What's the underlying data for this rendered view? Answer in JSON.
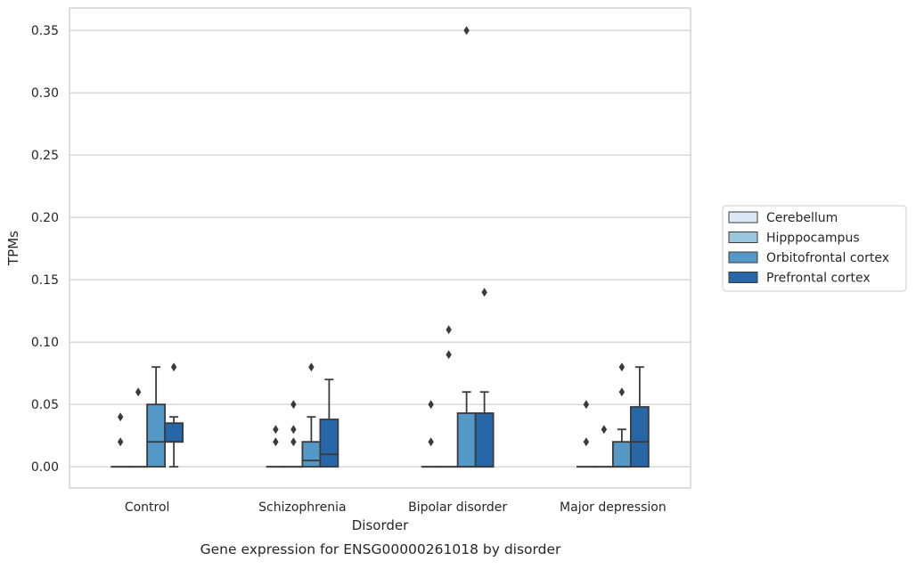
{
  "chart_data": {
    "type": "box",
    "xlabel": "Disorder",
    "ylabel": "TPMs",
    "caption": "Gene expression for ENSG00000261018 by disorder",
    "categories": [
      "Control",
      "Schizophrenia",
      "Bipolar disorder",
      "Major depression"
    ],
    "ylim": [
      -0.017,
      0.368
    ],
    "yticks": [
      0.0,
      0.05,
      0.1,
      0.15,
      0.2,
      0.25,
      0.3,
      0.35
    ],
    "ytick_labels": [
      "0.00",
      "0.05",
      "0.10",
      "0.15",
      "0.20",
      "0.25",
      "0.30",
      "0.35"
    ],
    "grid": true,
    "legend_position": "right",
    "series": [
      {
        "name": "Cerebellum",
        "color": "#dbe8f5",
        "boxes": [
          {
            "q1": 0,
            "median": 0,
            "q3": 0,
            "whisker_low": 0,
            "whisker_high": 0,
            "outliers": [
              0.02,
              0.04
            ]
          },
          {
            "q1": 0,
            "median": 0,
            "q3": 0,
            "whisker_low": 0,
            "whisker_high": 0,
            "outliers": [
              0.02,
              0.03
            ]
          },
          {
            "q1": 0,
            "median": 0,
            "q3": 0,
            "whisker_low": 0,
            "whisker_high": 0,
            "outliers": [
              0.02,
              0.05
            ]
          },
          {
            "q1": 0,
            "median": 0,
            "q3": 0,
            "whisker_low": 0,
            "whisker_high": 0,
            "outliers": [
              0.02,
              0.05
            ]
          }
        ]
      },
      {
        "name": "Hipppocampus",
        "color": "#9ac7e0",
        "boxes": [
          {
            "q1": 0,
            "median": 0,
            "q3": 0,
            "whisker_low": 0,
            "whisker_high": 0,
            "outliers": [
              0.06
            ]
          },
          {
            "q1": 0,
            "median": 0,
            "q3": 0,
            "whisker_low": 0,
            "whisker_high": 0,
            "outliers": [
              0.02,
              0.03,
              0.05
            ]
          },
          {
            "q1": 0,
            "median": 0,
            "q3": 0,
            "whisker_low": 0,
            "whisker_high": 0,
            "outliers": [
              0.09,
              0.11
            ]
          },
          {
            "q1": 0,
            "median": 0,
            "q3": 0,
            "whisker_low": 0,
            "whisker_high": 0,
            "outliers": [
              0.03
            ]
          }
        ]
      },
      {
        "name": "Orbitofrontal cortex",
        "color": "#5498c8",
        "boxes": [
          {
            "q1": 0,
            "median": 0.02,
            "q3": 0.05,
            "whisker_low": 0,
            "whisker_high": 0.08,
            "outliers": []
          },
          {
            "q1": 0,
            "median": 0.005,
            "q3": 0.02,
            "whisker_low": 0,
            "whisker_high": 0.04,
            "outliers": [
              0.08
            ]
          },
          {
            "q1": 0,
            "median": 0,
            "q3": 0.043,
            "whisker_low": 0,
            "whisker_high": 0.06,
            "outliers": [
              0.35
            ]
          },
          {
            "q1": 0,
            "median": 0,
            "q3": 0.02,
            "whisker_low": 0,
            "whisker_high": 0.03,
            "outliers": [
              0.06,
              0.08
            ]
          }
        ]
      },
      {
        "name": "Prefrontal cortex",
        "color": "#2767a8",
        "boxes": [
          {
            "q1": 0.02,
            "median": 0.02,
            "q3": 0.035,
            "whisker_low": 0,
            "whisker_high": 0.04,
            "outliers": [
              0.08
            ]
          },
          {
            "q1": 0,
            "median": 0.01,
            "q3": 0.038,
            "whisker_low": 0,
            "whisker_high": 0.07,
            "outliers": []
          },
          {
            "q1": 0,
            "median": 0,
            "q3": 0.043,
            "whisker_low": 0,
            "whisker_high": 0.06,
            "outliers": [
              0.14
            ]
          },
          {
            "q1": 0,
            "median": 0.02,
            "q3": 0.048,
            "whisker_low": 0,
            "whisker_high": 0.08,
            "outliers": []
          }
        ]
      }
    ]
  }
}
